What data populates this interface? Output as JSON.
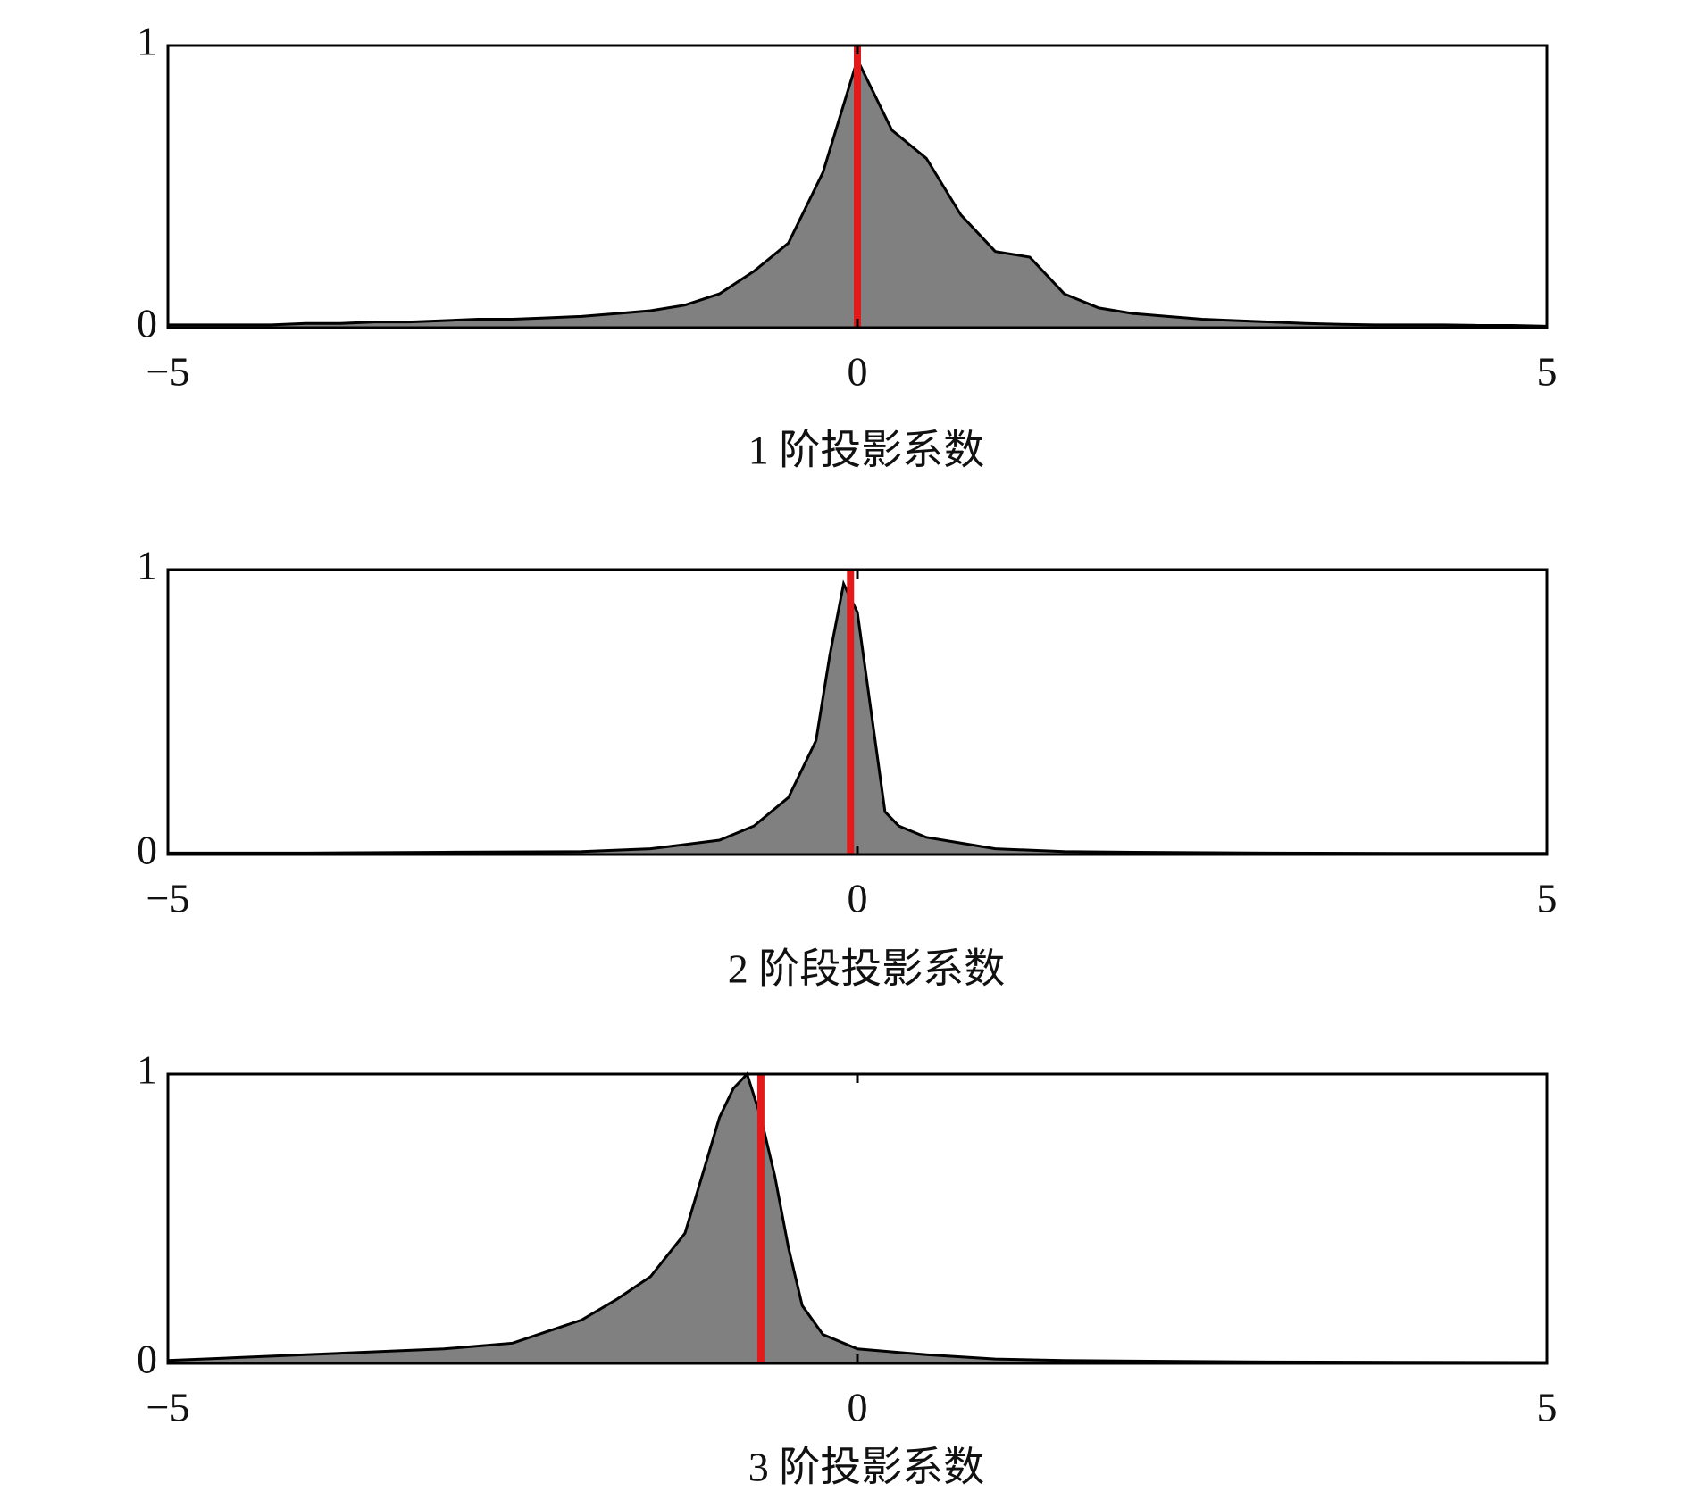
{
  "chart_data": [
    {
      "type": "area",
      "xlabel": "1 阶投影系数",
      "x": [
        -5,
        -4.75,
        -4.5,
        -4.25,
        -4,
        -3.75,
        -3.5,
        -3.25,
        -3,
        -2.75,
        -2.5,
        -2.25,
        -2,
        -1.75,
        -1.5,
        -1.25,
        -1,
        -0.75,
        -0.5,
        -0.25,
        0,
        0.25,
        0.5,
        0.75,
        1,
        1.25,
        1.5,
        1.75,
        2,
        2.25,
        2.5,
        2.75,
        3,
        3.25,
        3.5,
        3.75,
        4,
        4.25,
        4.5,
        4.75,
        5
      ],
      "values": [
        0.01,
        0.01,
        0.01,
        0.01,
        0.015,
        0.015,
        0.02,
        0.02,
        0.025,
        0.03,
        0.03,
        0.035,
        0.04,
        0.05,
        0.06,
        0.08,
        0.12,
        0.2,
        0.3,
        0.55,
        0.95,
        0.7,
        0.6,
        0.4,
        0.27,
        0.25,
        0.12,
        0.07,
        0.05,
        0.04,
        0.03,
        0.025,
        0.02,
        0.015,
        0.012,
        0.01,
        0.01,
        0.01,
        0.008,
        0.008,
        0.005
      ],
      "color": "#808080",
      "vline": {
        "x": 0,
        "color": "#e31a1c"
      },
      "xlim": [
        -5,
        5
      ],
      "ylim": [
        0,
        1
      ],
      "xticks": [
        {
          "value": -5,
          "label": "−5"
        },
        0,
        5
      ],
      "yticks": [
        0,
        1
      ]
    },
    {
      "type": "area",
      "xlabel": "2 阶段投影系数",
      "x": [
        -5,
        -4,
        -3,
        -2,
        -1.5,
        -1,
        -0.75,
        -0.5,
        -0.4,
        -0.3,
        -0.2,
        -0.1,
        0,
        0.1,
        0.2,
        0.3,
        0.5,
        0.75,
        1,
        1.5,
        2,
        3,
        4,
        5
      ],
      "values": [
        0.005,
        0.005,
        0.008,
        0.01,
        0.02,
        0.05,
        0.1,
        0.2,
        0.3,
        0.4,
        0.7,
        0.95,
        0.85,
        0.5,
        0.15,
        0.1,
        0.06,
        0.04,
        0.02,
        0.01,
        0.008,
        0.005,
        0.004,
        0.004
      ],
      "color": "#808080",
      "vline": {
        "x": -0.05,
        "color": "#e31a1c"
      },
      "xlim": [
        -5,
        5
      ],
      "ylim": [
        0,
        1
      ],
      "xticks": [
        {
          "value": -5,
          "label": "−5"
        },
        0,
        5
      ],
      "yticks": [
        0,
        1
      ]
    },
    {
      "type": "area",
      "xlabel": "3 阶投影系数",
      "x": [
        -5,
        -4.5,
        -4,
        -3.5,
        -3,
        -2.5,
        -2,
        -1.75,
        -1.5,
        -1.25,
        -1,
        -0.9,
        -0.8,
        -0.7,
        -0.6,
        -0.5,
        -0.4,
        -0.25,
        0,
        0.5,
        1,
        1.5,
        2,
        3,
        4,
        5
      ],
      "values": [
        0.01,
        0.02,
        0.03,
        0.04,
        0.05,
        0.07,
        0.15,
        0.22,
        0.3,
        0.45,
        0.85,
        0.95,
        1.0,
        0.85,
        0.65,
        0.4,
        0.2,
        0.1,
        0.05,
        0.03,
        0.015,
        0.01,
        0.008,
        0.005,
        0.004,
        0.003
      ],
      "color": "#808080",
      "vline": {
        "x": -0.7,
        "color": "#e31a1c"
      },
      "xlim": [
        -5,
        5
      ],
      "ylim": [
        0,
        1
      ],
      "xticks": [
        {
          "value": -5,
          "label": "−5"
        },
        0,
        5
      ],
      "yticks": [
        0,
        1
      ]
    }
  ]
}
